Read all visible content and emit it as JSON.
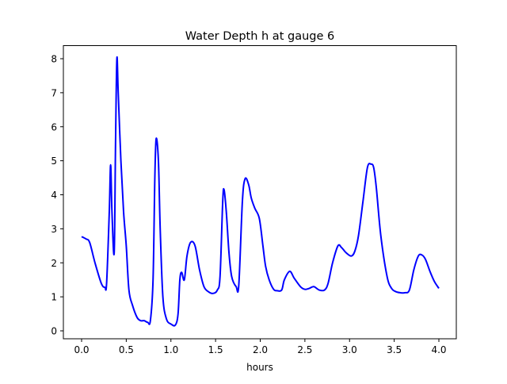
{
  "chart_data": {
    "type": "line",
    "title": "Water Depth h at gauge 6",
    "xlabel": "hours",
    "ylabel": "",
    "xlim": [
      -0.2,
      4.2
    ],
    "ylim": [
      -0.23,
      8.4
    ],
    "xticks": [
      0.0,
      0.5,
      1.0,
      1.5,
      2.0,
      2.5,
      3.0,
      3.5,
      4.0
    ],
    "xtick_labels": [
      "0.0",
      "0.5",
      "1.0",
      "1.5",
      "2.0",
      "2.5",
      "3.0",
      "3.5",
      "4.0"
    ],
    "yticks": [
      0,
      1,
      2,
      3,
      4,
      5,
      6,
      7,
      8
    ],
    "ytick_labels": [
      "0",
      "1",
      "2",
      "3",
      "4",
      "5",
      "6",
      "7",
      "8"
    ],
    "grid": false,
    "series": [
      {
        "name": "h",
        "color": "#0000ff",
        "x": [
          0.0,
          0.05,
          0.09,
          0.15,
          0.22,
          0.26,
          0.28,
          0.31,
          0.325,
          0.34,
          0.365,
          0.38,
          0.395,
          0.41,
          0.44,
          0.47,
          0.5,
          0.53,
          0.57,
          0.62,
          0.66,
          0.7,
          0.74,
          0.77,
          0.8,
          0.82,
          0.835,
          0.86,
          0.88,
          0.91,
          0.95,
          1.0,
          1.05,
          1.08,
          1.1,
          1.12,
          1.15,
          1.18,
          1.22,
          1.27,
          1.32,
          1.37,
          1.42,
          1.47,
          1.52,
          1.55,
          1.58,
          1.595,
          1.62,
          1.65,
          1.68,
          1.73,
          1.76,
          1.8,
          1.83,
          1.87,
          1.9,
          1.94,
          1.99,
          2.03,
          2.06,
          2.1,
          2.15,
          2.19,
          2.24,
          2.27,
          2.33,
          2.38,
          2.45,
          2.5,
          2.55,
          2.6,
          2.66,
          2.72,
          2.76,
          2.81,
          2.87,
          2.91,
          2.96,
          3.02,
          3.06,
          3.1,
          3.15,
          3.2,
          3.24,
          3.27,
          3.3,
          3.35,
          3.42,
          3.47,
          3.52,
          3.57,
          3.62,
          3.67,
          3.72,
          3.77,
          3.81,
          3.85,
          3.9,
          3.95,
          4.0
        ],
        "y": [
          2.77,
          2.7,
          2.6,
          2.0,
          1.4,
          1.28,
          1.4,
          3.5,
          4.88,
          3.5,
          2.3,
          5.5,
          8.0,
          7.0,
          5.0,
          3.5,
          2.5,
          1.2,
          0.75,
          0.4,
          0.3,
          0.3,
          0.25,
          0.3,
          1.5,
          4.5,
          5.65,
          5.0,
          3.0,
          1.0,
          0.35,
          0.2,
          0.17,
          0.5,
          1.5,
          1.72,
          1.5,
          2.2,
          2.6,
          2.5,
          1.8,
          1.3,
          1.15,
          1.1,
          1.2,
          1.6,
          3.8,
          4.15,
          3.5,
          2.3,
          1.6,
          1.3,
          1.35,
          3.8,
          4.47,
          4.3,
          3.9,
          3.6,
          3.3,
          2.5,
          1.9,
          1.5,
          1.22,
          1.18,
          1.2,
          1.5,
          1.75,
          1.55,
          1.3,
          1.22,
          1.25,
          1.3,
          1.2,
          1.2,
          1.4,
          2.0,
          2.5,
          2.45,
          2.3,
          2.2,
          2.35,
          2.8,
          3.8,
          4.8,
          4.9,
          4.8,
          4.2,
          2.8,
          1.6,
          1.25,
          1.15,
          1.12,
          1.12,
          1.2,
          1.8,
          2.2,
          2.23,
          2.1,
          1.75,
          1.45,
          1.25
        ]
      }
    ]
  }
}
